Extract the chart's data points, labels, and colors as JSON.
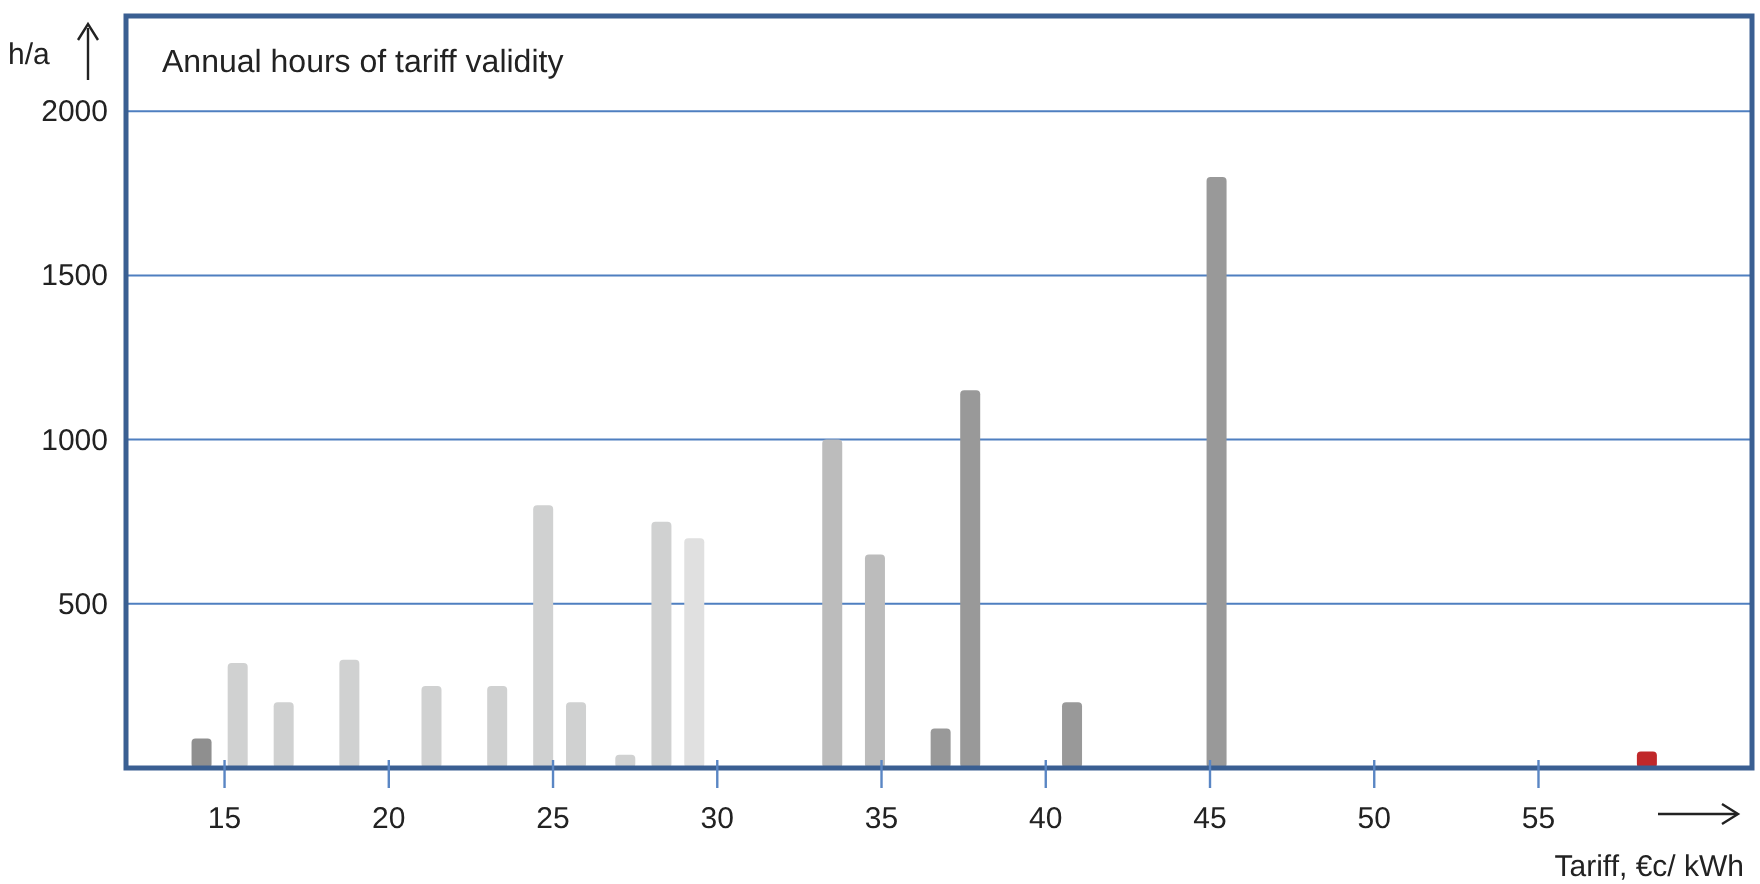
{
  "chart_data": {
    "type": "bar",
    "title": "Annual hours of tariff validity",
    "xlabel": "Tariff, €c/ kWh",
    "ylabel": "h/a",
    "x": [
      14.3,
      15.4,
      16.8,
      18.8,
      21.3,
      23.3,
      24.7,
      25.7,
      27.2,
      28.3,
      29.3,
      33.5,
      34.8,
      36.8,
      37.7,
      40.8,
      45.2,
      58.3
    ],
    "values": [
      90,
      320,
      200,
      330,
      250,
      250,
      800,
      200,
      40,
      750,
      700,
      1000,
      650,
      120,
      1150,
      200,
      1800,
      50
    ],
    "colors": [
      "#8f8f8f",
      "#d0d1d1",
      "#d0d1d1",
      "#d0d1d1",
      "#d0d1d1",
      "#d0d1d1",
      "#d0d1d1",
      "#d0d1d1",
      "#d0d1d1",
      "#d0d1d1",
      "#e0e0e0",
      "#bcbcbc",
      "#bcbcbc",
      "#999999",
      "#999999",
      "#999999",
      "#999999",
      "#c0282a"
    ],
    "xlim": [
      12,
      61.5
    ],
    "xticks": [
      15,
      20,
      25,
      30,
      35,
      40,
      45,
      50,
      55
    ],
    "ylim": [
      0,
      2290
    ],
    "yticks": [
      500,
      1000,
      1500,
      2000
    ],
    "grid": "y"
  }
}
